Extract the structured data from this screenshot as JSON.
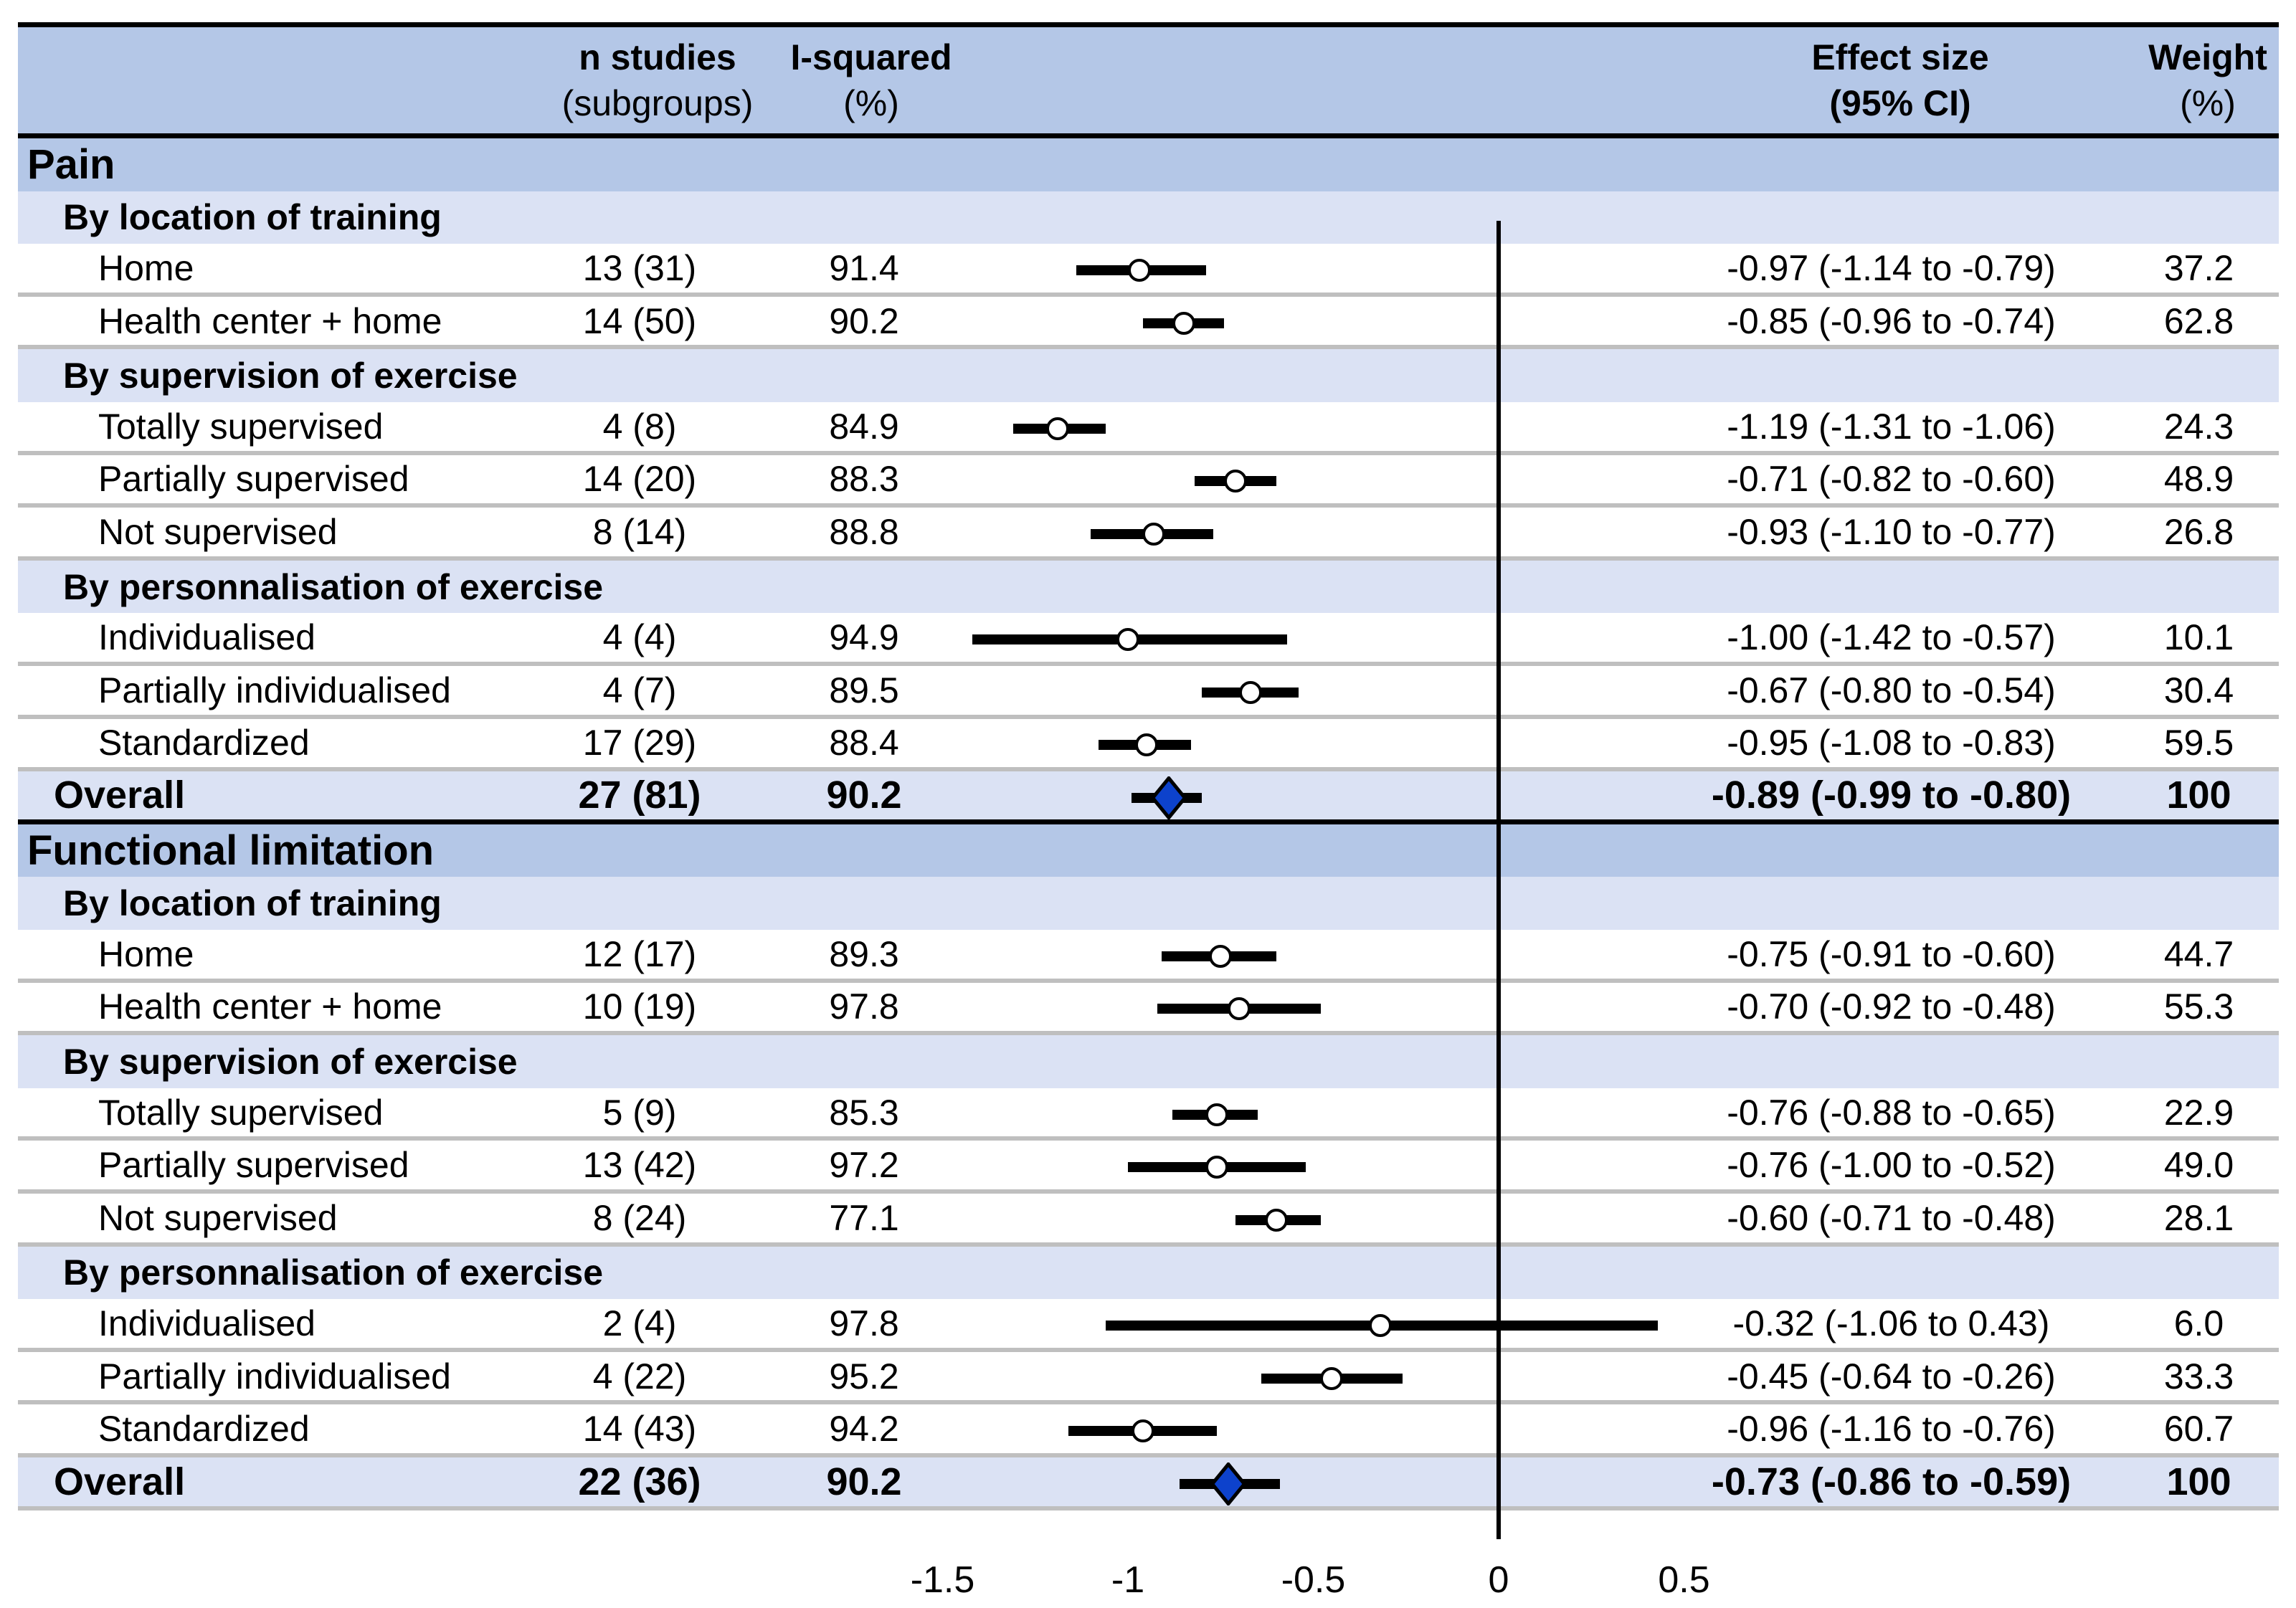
{
  "palette": {
    "section_band": "#b4c7e7",
    "subsection_band": "#dbe2f4",
    "separator": "#bfbfbf",
    "diamond_fill": "#0d42cc",
    "marker_fill": "#ffffff",
    "line_color": "#000000"
  },
  "chart_data": {
    "type": "forest",
    "columns": {
      "n_studies": {
        "line1": "n studies",
        "line2": "(subgroups)"
      },
      "i_squared": {
        "line1": "I-squared",
        "line2": "(%)"
      },
      "effect": {
        "line1": "Effect size",
        "line2": "(95% CI)"
      },
      "weight": {
        "line1": "Weight",
        "line2": "(%)"
      }
    },
    "axis": {
      "ticks": [
        {
          "value": -1.5,
          "label": "-1.5"
        },
        {
          "value": -1.0,
          "label": "-1"
        },
        {
          "value": -0.5,
          "label": "-0.5"
        },
        {
          "value": 0.0,
          "label": "0"
        },
        {
          "value": 0.5,
          "label": "0.5"
        }
      ],
      "zero_reference": 0
    },
    "sections": [
      {
        "title": "Pain",
        "subgroups": [
          {
            "heading": "By location of training",
            "rows": [
              {
                "label": "Home",
                "n_studies": "13 (31)",
                "i_squared": "91.4",
                "est": -0.97,
                "lo": -1.14,
                "hi": -0.79,
                "effect_text": "-0.97 (-1.14 to -0.79)",
                "weight": "37.2"
              },
              {
                "label": "Health center + home",
                "n_studies": "14 (50)",
                "i_squared": "90.2",
                "est": -0.85,
                "lo": -0.96,
                "hi": -0.74,
                "effect_text": "-0.85 (-0.96 to -0.74)",
                "weight": "62.8"
              }
            ]
          },
          {
            "heading": "By supervision of exercise",
            "rows": [
              {
                "label": "Totally supervised",
                "n_studies": "4 (8)",
                "i_squared": "84.9",
                "est": -1.19,
                "lo": -1.31,
                "hi": -1.06,
                "effect_text": "-1.19 (-1.31 to -1.06)",
                "weight": "24.3"
              },
              {
                "label": "Partially supervised",
                "n_studies": "14 (20)",
                "i_squared": "88.3",
                "est": -0.71,
                "lo": -0.82,
                "hi": -0.6,
                "effect_text": "-0.71 (-0.82 to -0.60)",
                "weight": "48.9"
              },
              {
                "label": "Not supervised",
                "n_studies": "8 (14)",
                "i_squared": "88.8",
                "est": -0.93,
                "lo": -1.1,
                "hi": -0.77,
                "effect_text": "-0.93 (-1.10 to -0.77)",
                "weight": "26.8"
              }
            ]
          },
          {
            "heading": "By personnalisation of exercise",
            "rows": [
              {
                "label": "Individualised",
                "n_studies": "4 (4)",
                "i_squared": "94.9",
                "est": -1.0,
                "lo": -1.42,
                "hi": -0.57,
                "effect_text": "-1.00 (-1.42 to -0.57)",
                "weight": "10.1"
              },
              {
                "label": "Partially individualised",
                "n_studies": "4 (7)",
                "i_squared": "89.5",
                "est": -0.67,
                "lo": -0.8,
                "hi": -0.54,
                "effect_text": "-0.67 (-0.80 to -0.54)",
                "weight": "30.4"
              },
              {
                "label": "Standardized",
                "n_studies": "17 (29)",
                "i_squared": "88.4",
                "est": -0.95,
                "lo": -1.08,
                "hi": -0.83,
                "effect_text": "-0.95 (-1.08 to -0.83)",
                "weight": "59.5"
              }
            ]
          }
        ],
        "overall": {
          "label": "Overall",
          "n_studies": "27 (81)",
          "i_squared": "90.2",
          "est": -0.89,
          "lo": -0.99,
          "hi": -0.8,
          "effect_text": "-0.89 (-0.99 to -0.80)",
          "weight": "100"
        }
      },
      {
        "title": "Functional limitation",
        "subgroups": [
          {
            "heading": "By location of training",
            "rows": [
              {
                "label": "Home",
                "n_studies": "12 (17)",
                "i_squared": "89.3",
                "est": -0.75,
                "lo": -0.91,
                "hi": -0.6,
                "effect_text": "-0.75 (-0.91 to -0.60)",
                "weight": "44.7"
              },
              {
                "label": "Health center + home",
                "n_studies": "10 (19)",
                "i_squared": "97.8",
                "est": -0.7,
                "lo": -0.92,
                "hi": -0.48,
                "effect_text": "-0.70 (-0.92 to -0.48)",
                "weight": "55.3"
              }
            ]
          },
          {
            "heading": "By supervision of exercise",
            "rows": [
              {
                "label": "Totally supervised",
                "n_studies": "5 (9)",
                "i_squared": "85.3",
                "est": -0.76,
                "lo": -0.88,
                "hi": -0.65,
                "effect_text": "-0.76 (-0.88 to -0.65)",
                "weight": "22.9"
              },
              {
                "label": "Partially supervised",
                "n_studies": "13 (42)",
                "i_squared": "97.2",
                "est": -0.76,
                "lo": -1.0,
                "hi": -0.52,
                "effect_text": "-0.76 (-1.00 to -0.52)",
                "weight": "49.0"
              },
              {
                "label": "Not supervised",
                "n_studies": "8 (24)",
                "i_squared": "77.1",
                "est": -0.6,
                "lo": -0.71,
                "hi": -0.48,
                "effect_text": "-0.60 (-0.71 to -0.48)",
                "weight": "28.1"
              }
            ]
          },
          {
            "heading": "By personnalisation of exercise",
            "rows": [
              {
                "label": "Individualised",
                "n_studies": "2 (4)",
                "i_squared": "97.8",
                "est": -0.32,
                "lo": -1.06,
                "hi": 0.43,
                "effect_text": "-0.32 (-1.06 to 0.43)",
                "weight": "6.0"
              },
              {
                "label": "Partially individualised",
                "n_studies": "4 (22)",
                "i_squared": "95.2",
                "est": -0.45,
                "lo": -0.64,
                "hi": -0.26,
                "effect_text": "-0.45 (-0.64 to -0.26)",
                "weight": "33.3"
              },
              {
                "label": "Standardized",
                "n_studies": "14 (43)",
                "i_squared": "94.2",
                "est": -0.96,
                "lo": -1.16,
                "hi": -0.76,
                "effect_text": "-0.96 (-1.16 to -0.76)",
                "weight": "60.7"
              }
            ]
          }
        ],
        "overall": {
          "label": "Overall",
          "n_studies": "22 (36)",
          "i_squared": "90.2",
          "est": -0.73,
          "lo": -0.86,
          "hi": -0.59,
          "effect_text": "-0.73 (-0.86 to -0.59)",
          "weight": "100"
        }
      }
    ]
  }
}
